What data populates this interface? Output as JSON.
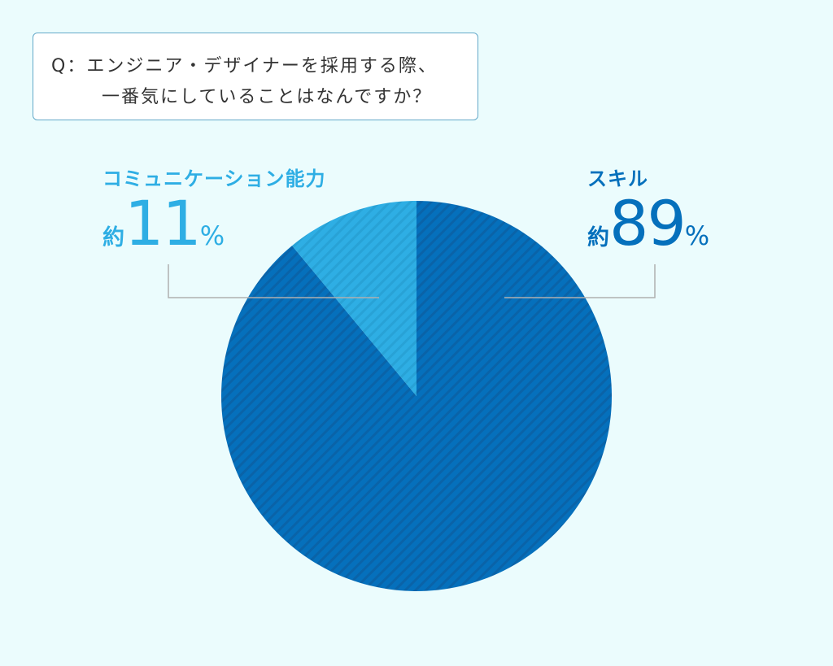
{
  "question": {
    "line1": "Q：エンジニア・デザイナーを採用する際、",
    "line2": "一番気にしていることはなんですか？"
  },
  "colors": {
    "background": "#ebfcfd",
    "skill": "#0570bc",
    "skill_stripe": "#0a63a8",
    "communication": "#2eaee4",
    "communication_stripe": "#28a2d6",
    "leader_line": "#b0b0b0"
  },
  "labels": {
    "communication": {
      "name": "コミュニケーション能力",
      "approx": "約",
      "value": "11",
      "unit": "%"
    },
    "skill": {
      "name": "スキル",
      "approx": "約",
      "value": "89",
      "unit": "%"
    }
  },
  "chart_data": {
    "type": "pie",
    "start_angle_deg": 0,
    "direction": "clockwise",
    "slices": [
      {
        "label": "スキル",
        "value": 89,
        "color": "#0570bc",
        "stripe": "#0a63a8"
      },
      {
        "label": "コミュニケーション能力",
        "value": 11,
        "color": "#2eaee4",
        "stripe": "#28a2d6"
      }
    ]
  }
}
